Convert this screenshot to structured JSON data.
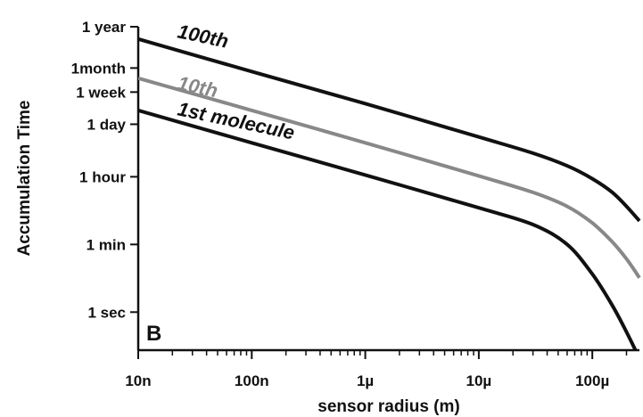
{
  "chart_data": {
    "type": "line",
    "title": "",
    "panel_label": "B",
    "xlabel": "sensor radius (m)",
    "ylabel": "Accumulation Time",
    "x_scale": "log",
    "y_scale": "log",
    "xlim": [
      1e-08,
      0.00026
    ],
    "ylim": [
      0.1,
      31536000
    ],
    "x_ticks": [
      {
        "value": 1e-08,
        "label": "10n"
      },
      {
        "value": 1e-07,
        "label": "100n"
      },
      {
        "value": 1e-06,
        "label": "1µ"
      },
      {
        "value": 1e-05,
        "label": "10µ"
      },
      {
        "value": 0.0001,
        "label": "100µ"
      }
    ],
    "y_ticks": [
      {
        "value": 1,
        "label": "1 sec"
      },
      {
        "value": 60,
        "label": "1 min"
      },
      {
        "value": 3600,
        "label": "1 hour"
      },
      {
        "value": 86400,
        "label": "1 day"
      },
      {
        "value": 604800,
        "label": "1 week"
      },
      {
        "value": 2592000,
        "label": "1month"
      },
      {
        "value": 31536000,
        "label": "1 year"
      }
    ],
    "grid": false,
    "legend": "none",
    "series": [
      {
        "name": "100th",
        "color": "#111111",
        "x": [
          1e-08,
          1e-07,
          1e-06,
          1e-05,
          3e-05,
          6e-05,
          0.0001,
          0.00015,
          0.0002,
          0.00026
        ],
        "y": [
          15000000,
          2100000,
          300000,
          40000,
          15000,
          7000,
          3200,
          1400,
          600,
          250
        ]
      },
      {
        "name": "10th",
        "color": "#888888",
        "x": [
          1e-08,
          1e-07,
          1e-06,
          1e-05,
          3e-05,
          6e-05,
          0.0001,
          0.00015,
          0.0002,
          0.00026
        ],
        "y": [
          1400000,
          200000,
          28000,
          3800,
          1400,
          600,
          220,
          70,
          25,
          8
        ]
      },
      {
        "name": "1st molecule",
        "color": "#111111",
        "x": [
          1e-08,
          1e-07,
          1e-06,
          1e-05,
          3e-05,
          6e-05,
          0.0001,
          0.00015,
          0.0002,
          0.00024
        ],
        "y": [
          200000,
          28000,
          4000,
          550,
          200,
          60,
          10,
          1.5,
          0.3,
          0.1
        ]
      }
    ]
  }
}
